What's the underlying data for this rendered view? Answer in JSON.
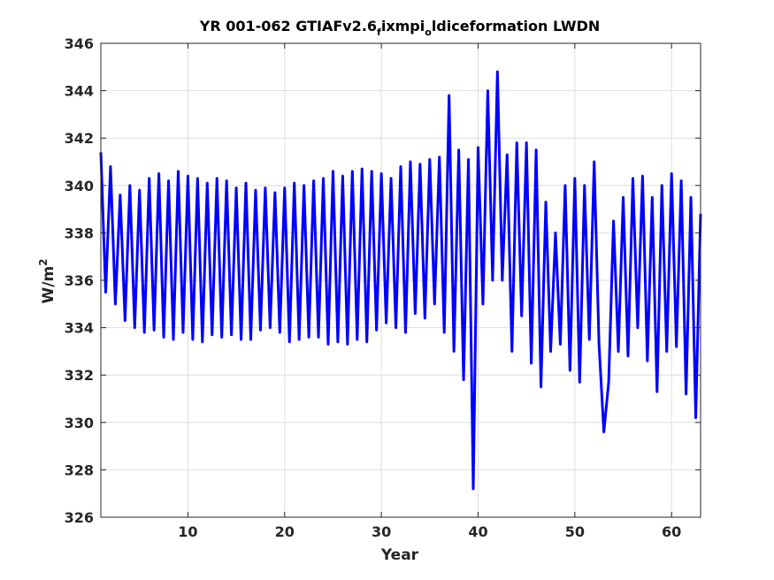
{
  "chart_data": {
    "type": "line",
    "title_parts": [
      "YR 001-062 GTIAFv2.6",
      "f",
      "ixmpi",
      "o",
      "ldiceformation LWDN"
    ],
    "xlabel": "Year",
    "ylabel_main": "W/m",
    "ylabel_sup": "2",
    "xlim": [
      1,
      63
    ],
    "ylim": [
      326,
      346
    ],
    "xticks": [
      10,
      20,
      30,
      40,
      50,
      60
    ],
    "yticks": [
      326,
      328,
      330,
      332,
      334,
      336,
      338,
      340,
      342,
      344,
      346
    ],
    "grid": true,
    "color": "#0000ff",
    "series": [
      {
        "x": [
          1.0,
          1.5,
          2.0,
          2.5,
          3.0,
          3.5,
          4.0,
          4.5,
          5.0,
          5.5,
          6.0,
          6.5,
          7.0,
          7.5,
          8.0,
          8.5,
          9.0,
          9.5,
          10.0,
          10.5,
          11.0,
          11.5,
          12.0,
          12.5,
          13.0,
          13.5,
          14.0,
          14.5,
          15.0,
          15.5,
          16.0,
          16.5,
          17.0,
          17.5,
          18.0,
          18.5,
          19.0,
          19.5,
          20.0,
          20.5,
          21.0,
          21.5,
          22.0,
          22.5,
          23.0,
          23.5,
          24.0,
          24.5,
          25.0,
          25.5,
          26.0,
          26.5,
          27.0,
          27.5,
          28.0,
          28.5,
          29.0,
          29.5,
          30.0,
          30.5,
          31.0,
          31.5,
          32.0,
          32.5,
          33.0,
          33.5,
          34.0,
          34.5,
          35.0,
          35.5,
          36.0,
          36.5,
          37.0,
          37.5,
          38.0,
          38.5,
          39.0,
          39.5,
          40.0,
          40.5,
          41.0,
          41.5,
          42.0,
          42.5,
          43.0,
          43.5,
          44.0,
          44.5,
          45.0,
          45.5,
          46.0,
          46.5,
          47.0,
          47.5,
          48.0,
          48.5,
          49.0,
          49.5,
          50.0,
          50.5,
          51.0,
          51.5,
          52.0,
          52.5,
          53.0,
          53.5,
          54.0,
          54.5,
          55.0,
          55.5,
          56.0,
          56.5,
          57.0,
          57.5,
          58.0,
          58.5,
          59.0,
          59.5,
          60.0,
          60.5,
          61.0,
          61.5,
          62.0,
          62.5,
          63.0
        ],
        "y": [
          341.4,
          335.5,
          340.8,
          335.0,
          339.6,
          334.3,
          340.0,
          334.0,
          339.8,
          333.8,
          340.3,
          333.9,
          340.5,
          333.6,
          340.2,
          333.5,
          340.6,
          333.8,
          340.4,
          333.5,
          340.3,
          333.4,
          340.1,
          333.7,
          340.3,
          333.6,
          340.2,
          333.7,
          339.9,
          333.5,
          340.1,
          333.5,
          339.8,
          333.9,
          339.9,
          334.0,
          339.7,
          333.8,
          339.9,
          333.4,
          340.1,
          333.5,
          340.0,
          333.6,
          340.2,
          333.6,
          340.3,
          333.3,
          340.6,
          333.4,
          340.4,
          333.3,
          340.6,
          333.5,
          340.7,
          333.4,
          340.6,
          333.9,
          340.5,
          334.2,
          340.3,
          334.0,
          340.8,
          333.8,
          341.0,
          334.6,
          340.9,
          334.4,
          341.1,
          335.0,
          341.2,
          333.8,
          343.8,
          333.0,
          341.5,
          331.8,
          341.1,
          327.2,
          341.6,
          335.0,
          344.0,
          336.0,
          344.8,
          336.0,
          341.3,
          333.0,
          341.8,
          334.5,
          341.8,
          332.5,
          341.5,
          331.5,
          339.3,
          333.0,
          338.0,
          333.3,
          340.0,
          332.2,
          340.3,
          331.7,
          340.0,
          333.5,
          341.0,
          333.3,
          329.6,
          331.7,
          338.5,
          333.0,
          339.5,
          332.8,
          340.3,
          334.0,
          340.4,
          332.6,
          339.5,
          331.3,
          340.0,
          333.0,
          340.5,
          333.2,
          340.2,
          331.2,
          339.5,
          330.2,
          338.8
        ]
      }
    ]
  }
}
